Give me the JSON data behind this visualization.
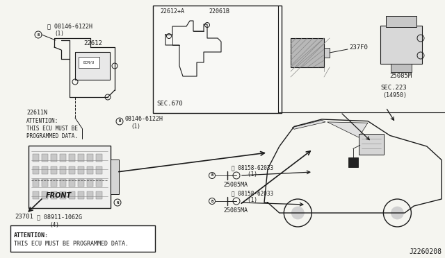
{
  "bg_color": "#f5f5f0",
  "line_color": "#1a1a1a",
  "text_color": "#1a1a1a",
  "diagram_id": "J2260208",
  "figsize": [
    6.4,
    3.72
  ],
  "dpi": 100,
  "labels": {
    "bolt_top_left": "B 08146-6122H\n  (1)",
    "part_22612": "22612",
    "part_22611N": "22611N",
    "attention_inline": "ATTENTION:\nTHIS ECU MUST BE\nPROGRAMMED DATA.",
    "bolt_mid_left": "B 08146-6122H\n  (1)",
    "part_23701": "23701",
    "bolt_N": "N 08911-1062G\n    (4)",
    "part_22612A": "22612+A",
    "part_22061B": "22061B",
    "sec670": "SEC.670",
    "part_237F0": "237F0",
    "part_25085M": "25085M",
    "sec223": "SEC.223\n(14950)",
    "bolt_sensor1": "B 08158-62033\n      (1)",
    "part_25085MA_1": "25085MA",
    "bolt_sensor2": "B 08158-62033\n      (1)",
    "part_25085MA_2": "25085MA",
    "front_label": "FRONT",
    "attention_box": "ATTENTION:\nTHIS ECU MUST BE PROGRAMMED DATA."
  }
}
